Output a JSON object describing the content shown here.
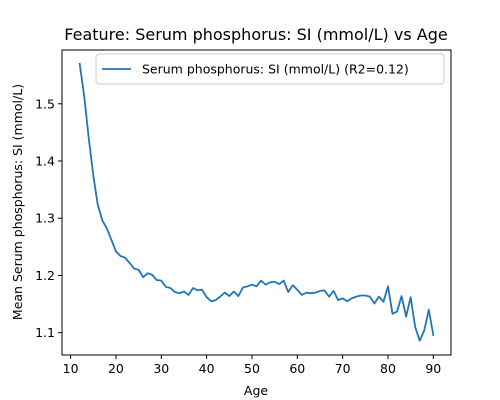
{
  "chart_data": {
    "type": "line",
    "title": "Feature: Serum phosphorus: SI (mmol/L) vs Age",
    "xlabel": "Age",
    "ylabel": "Mean Serum phosphorus: SI (mmol/L)",
    "xlim": [
      8.1,
      93.9
    ],
    "ylim": [
      1.061,
      1.594
    ],
    "xticks": [
      10,
      20,
      30,
      40,
      50,
      60,
      70,
      80,
      90
    ],
    "yticks": [
      1.1,
      1.2,
      1.3,
      1.4,
      1.5
    ],
    "grid": false,
    "legend_position": "top-right",
    "series": [
      {
        "name": "Serum phosphorus: SI (mmol/L) (R2=0.12)",
        "color": "#1f77b4",
        "x": [
          12,
          13,
          14,
          15,
          16,
          17,
          18,
          19,
          20,
          21,
          22,
          23,
          24,
          25,
          26,
          27,
          28,
          29,
          30,
          31,
          32,
          33,
          34,
          35,
          36,
          37,
          38,
          39,
          40,
          41,
          42,
          43,
          44,
          45,
          46,
          47,
          48,
          49,
          50,
          51,
          52,
          53,
          54,
          55,
          56,
          57,
          58,
          59,
          60,
          61,
          62,
          63,
          64,
          65,
          66,
          67,
          68,
          69,
          70,
          71,
          72,
          73,
          74,
          75,
          76,
          77,
          78,
          79,
          80,
          81,
          82,
          83,
          84,
          85,
          86,
          87,
          88,
          89,
          90
        ],
        "y": [
          1.57,
          1.513,
          1.44,
          1.375,
          1.323,
          1.296,
          1.282,
          1.262,
          1.242,
          1.234,
          1.231,
          1.222,
          1.212,
          1.21,
          1.197,
          1.204,
          1.201,
          1.192,
          1.191,
          1.18,
          1.178,
          1.171,
          1.169,
          1.172,
          1.166,
          1.178,
          1.174,
          1.175,
          1.162,
          1.155,
          1.157,
          1.163,
          1.17,
          1.164,
          1.172,
          1.164,
          1.179,
          1.181,
          1.184,
          1.181,
          1.191,
          1.184,
          1.188,
          1.189,
          1.185,
          1.191,
          1.171,
          1.183,
          1.175,
          1.166,
          1.17,
          1.169,
          1.17,
          1.173,
          1.174,
          1.163,
          1.173,
          1.157,
          1.16,
          1.155,
          1.16,
          1.163,
          1.165,
          1.165,
          1.163,
          1.151,
          1.163,
          1.154,
          1.181,
          1.133,
          1.137,
          1.164,
          1.128,
          1.162,
          1.11,
          1.086,
          1.104,
          1.14,
          1.096
        ]
      }
    ]
  }
}
